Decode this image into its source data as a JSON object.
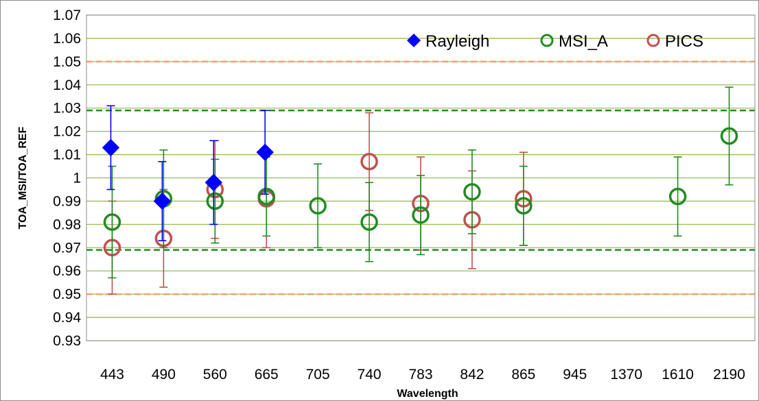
{
  "chart_data": {
    "type": "scatter",
    "xlabel": "Wavelength",
    "ylabel": "TOA_MSI/TOA_REF",
    "ylim": [
      0.93,
      1.07
    ],
    "y_ticks": [
      "1.07",
      "1.06",
      "1.05",
      "1.04",
      "1.03",
      "1.02",
      "1.01",
      "1",
      "0.99",
      "0.98",
      "0.97",
      "0.96",
      "0.95",
      "0.94",
      "0.93"
    ],
    "y_tick_values": [
      1.07,
      1.06,
      1.05,
      1.04,
      1.03,
      1.02,
      1.01,
      1.0,
      0.99,
      0.98,
      0.97,
      0.96,
      0.95,
      0.94,
      0.93
    ],
    "categories": [
      "443",
      "490",
      "560",
      "665",
      "705",
      "740",
      "783",
      "842",
      "865",
      "945",
      "1370",
      "1610",
      "2190"
    ],
    "grid": true,
    "legend_position": "top-right",
    "reference_lines": [
      {
        "y": 1.05,
        "color": "#F4A460",
        "style": "dashed"
      },
      {
        "y": 0.95,
        "color": "#F4A460",
        "style": "dashed"
      },
      {
        "y": 1.029,
        "color": "#228B22",
        "style": "dashed"
      },
      {
        "y": 0.969,
        "color": "#228B22",
        "style": "dashed"
      }
    ],
    "series": [
      {
        "name": "Rayleigh",
        "marker": "diamond",
        "color": "#0000FF",
        "points": [
          {
            "x": "443",
            "y": 1.013,
            "err": 0.018
          },
          {
            "x": "490",
            "y": 0.99,
            "err": 0.017
          },
          {
            "x": "560",
            "y": 0.998,
            "err": 0.018
          },
          {
            "x": "665",
            "y": 1.011,
            "err": 0.018
          }
        ]
      },
      {
        "name": "MSI_A",
        "marker": "circle",
        "color": "#228B22",
        "points": [
          {
            "x": "443",
            "y": 0.981,
            "err": 0.024
          },
          {
            "x": "490",
            "y": 0.991,
            "err": 0.021
          },
          {
            "x": "560",
            "y": 0.99,
            "err": 0.018
          },
          {
            "x": "665",
            "y": 0.992,
            "err": 0.017
          },
          {
            "x": "705",
            "y": 0.988,
            "err": 0.018
          },
          {
            "x": "740",
            "y": 0.981,
            "err": 0.017
          },
          {
            "x": "783",
            "y": 0.984,
            "err": 0.017
          },
          {
            "x": "842",
            "y": 0.994,
            "err": 0.018
          },
          {
            "x": "865",
            "y": 0.988,
            "err": 0.017
          },
          {
            "x": "1610",
            "y": 0.992,
            "err": 0.017
          },
          {
            "x": "2190",
            "y": 1.018,
            "err": 0.021
          }
        ]
      },
      {
        "name": "PICS",
        "marker": "circle",
        "color": "#C0504D",
        "points": [
          {
            "x": "443",
            "y": 0.97,
            "err": 0.02
          },
          {
            "x": "490",
            "y": 0.974,
            "err": 0.021
          },
          {
            "x": "560",
            "y": 0.995,
            "err": 0.021
          },
          {
            "x": "665",
            "y": 0.991,
            "err": 0.021
          },
          {
            "x": "740",
            "y": 1.007,
            "err": 0.021
          },
          {
            "x": "783",
            "y": 0.989,
            "err": 0.02
          },
          {
            "x": "842",
            "y": 0.982,
            "err": 0.021
          },
          {
            "x": "865",
            "y": 0.991,
            "err": 0.02
          }
        ]
      }
    ]
  }
}
